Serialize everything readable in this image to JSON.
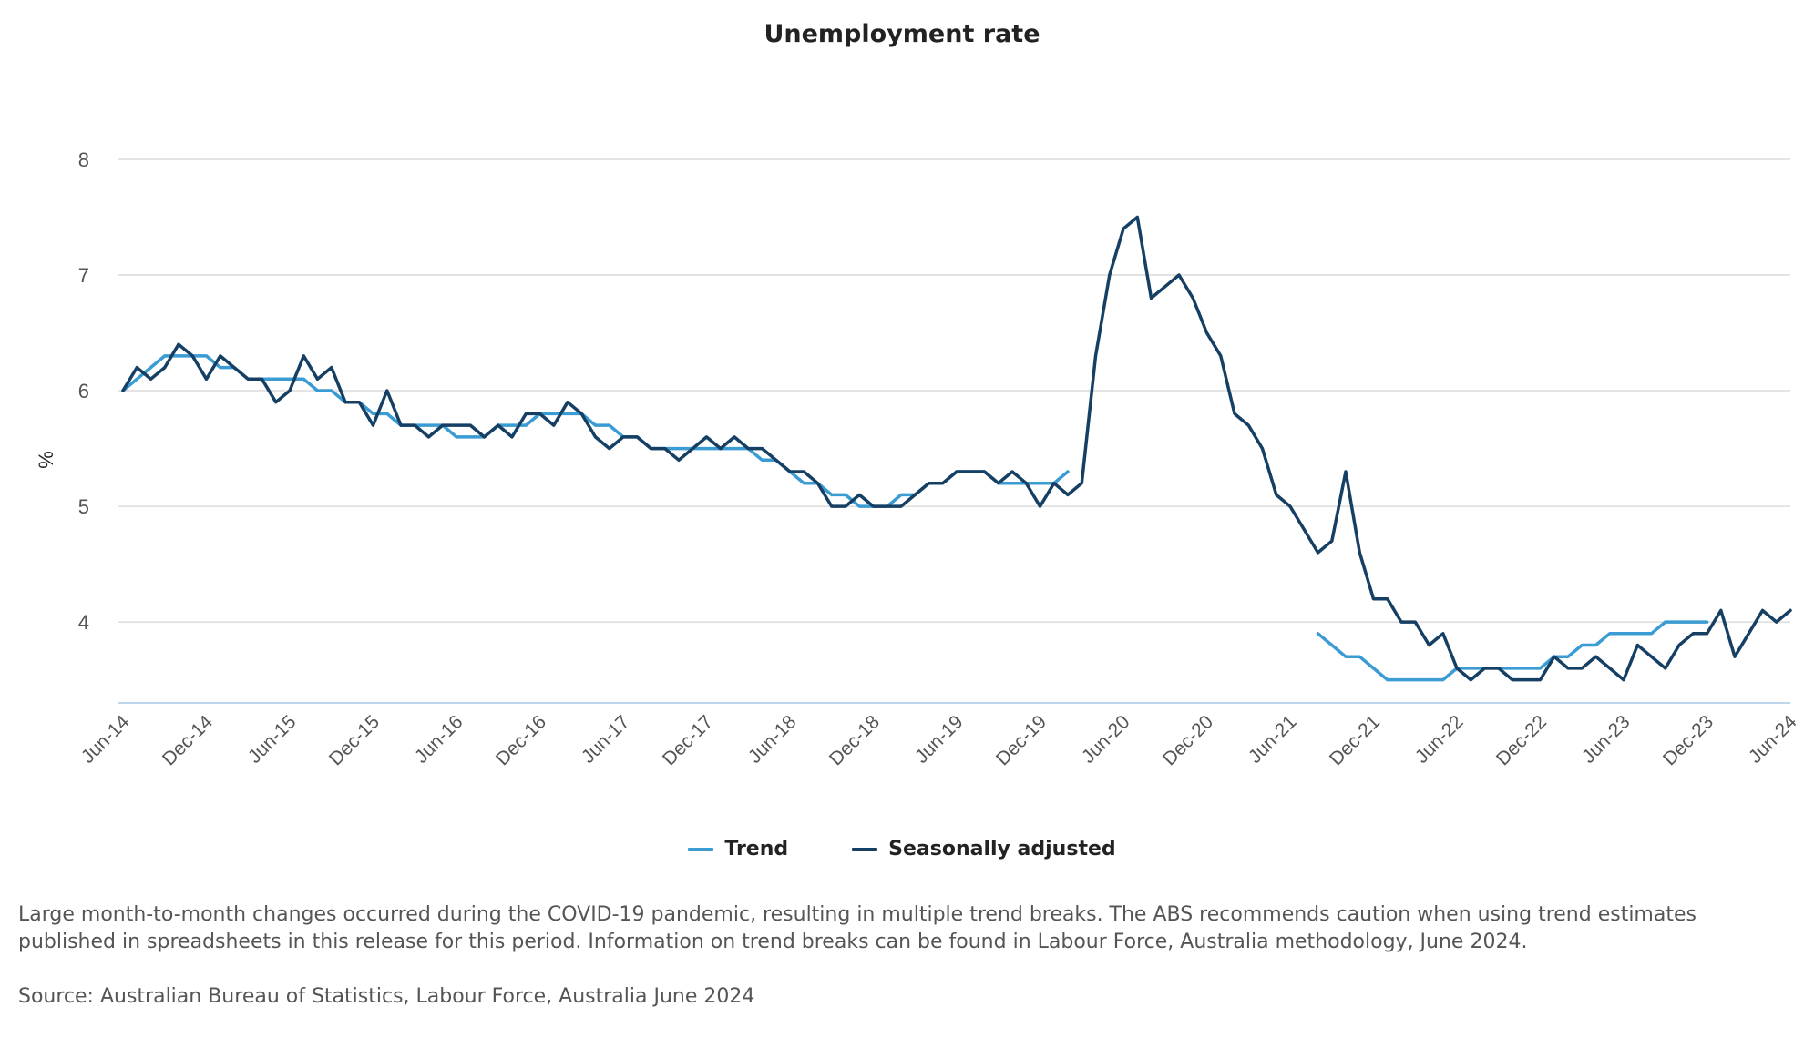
{
  "colors": {
    "trend": "#3b9bd3",
    "seasonally_adjusted": "#163f64",
    "grid": "#dcdcdc",
    "baseline": "#a9c8e6",
    "text": "#555555"
  },
  "footnote": "Large month-to-month changes occurred during the COVID-19 pandemic, resulting in multiple trend breaks. The ABS recommends caution when using trend estimates published in spreadsheets in this release for this period. Information on trend breaks can be found in Labour Force, Australia methodology, June 2024.",
  "source": "Source: Australian Bureau of Statistics, Labour Force, Australia June 2024",
  "chart_data": {
    "type": "line",
    "title": "Unemployment rate",
    "xlabel": "",
    "ylabel": "%",
    "ylim": [
      3.3,
      8
    ],
    "yticks": [
      4,
      5,
      6,
      7,
      8
    ],
    "grid": true,
    "legend_position": "bottom",
    "x_start": "Jun-14",
    "x_end": "Jun-24",
    "frequency": "monthly",
    "x_tick_labels": [
      "Jun-14",
      "Dec-14",
      "Jun-15",
      "Dec-15",
      "Jun-16",
      "Dec-16",
      "Jun-17",
      "Dec-17",
      "Jun-18",
      "Dec-18",
      "Jun-19",
      "Dec-19",
      "Jun-20",
      "Dec-20",
      "Jun-21",
      "Dec-21",
      "Jun-22",
      "Dec-22",
      "Jun-23",
      "Dec-23",
      "Jun-24"
    ],
    "series": [
      {
        "name": "Trend",
        "segments": [
          {
            "start_index": 0,
            "values": [
              6.0,
              6.1,
              6.2,
              6.3,
              6.3,
              6.3,
              6.3,
              6.2,
              6.2,
              6.1,
              6.1,
              6.1,
              6.1,
              6.1,
              6.0,
              6.0,
              5.9,
              5.9,
              5.8,
              5.8,
              5.7,
              5.7,
              5.7,
              5.7,
              5.6,
              5.6,
              5.6,
              5.7,
              5.7,
              5.7,
              5.8,
              5.8,
              5.8,
              5.8,
              5.7,
              5.7,
              5.6,
              5.6,
              5.5,
              5.5,
              5.5,
              5.5,
              5.5,
              5.5,
              5.5,
              5.5,
              5.4,
              5.4,
              5.3,
              5.2,
              5.2,
              5.1,
              5.1,
              5.0,
              5.0,
              5.0,
              5.1,
              5.1,
              5.2,
              5.2,
              5.3,
              5.3,
              5.3,
              5.2,
              5.2,
              5.2,
              5.2,
              5.2,
              5.3
            ]
          },
          {
            "start_index": 86,
            "values": [
              3.9,
              3.8,
              3.7,
              3.7,
              3.6,
              3.5,
              3.5,
              3.5,
              3.5,
              3.5,
              3.6,
              3.6,
              3.6,
              3.6,
              3.6,
              3.6,
              3.6,
              3.7,
              3.7,
              3.8,
              3.8,
              3.9,
              3.9,
              3.9,
              3.9,
              4.0,
              4.0,
              4.0,
              4.0
            ]
          }
        ]
      },
      {
        "name": "Seasonally adjusted",
        "values": [
          6.0,
          6.2,
          6.1,
          6.2,
          6.4,
          6.3,
          6.1,
          6.3,
          6.2,
          6.1,
          6.1,
          5.9,
          6.0,
          6.3,
          6.1,
          6.2,
          5.9,
          5.9,
          5.7,
          6.0,
          5.7,
          5.7,
          5.6,
          5.7,
          5.7,
          5.7,
          5.6,
          5.7,
          5.6,
          5.8,
          5.8,
          5.7,
          5.9,
          5.8,
          5.6,
          5.5,
          5.6,
          5.6,
          5.5,
          5.5,
          5.4,
          5.5,
          5.6,
          5.5,
          5.6,
          5.5,
          5.5,
          5.4,
          5.3,
          5.3,
          5.2,
          5.0,
          5.0,
          5.1,
          5.0,
          5.0,
          5.0,
          5.1,
          5.2,
          5.2,
          5.3,
          5.3,
          5.3,
          5.2,
          5.3,
          5.2,
          5.0,
          5.2,
          5.1,
          5.2,
          6.3,
          7.0,
          7.4,
          7.5,
          6.8,
          6.9,
          7.0,
          6.8,
          6.5,
          6.3,
          5.8,
          5.7,
          5.5,
          5.1,
          5.0,
          4.8,
          4.6,
          4.7,
          5.3,
          4.6,
          4.2,
          4.2,
          4.0,
          4.0,
          3.8,
          3.9,
          3.6,
          3.5,
          3.6,
          3.6,
          3.5,
          3.5,
          3.5,
          3.7,
          3.6,
          3.6,
          3.7,
          3.6,
          3.5,
          3.8,
          3.7,
          3.6,
          3.8,
          3.9,
          3.9,
          4.1,
          3.7,
          3.9,
          4.1,
          4.0,
          4.1
        ]
      }
    ]
  }
}
